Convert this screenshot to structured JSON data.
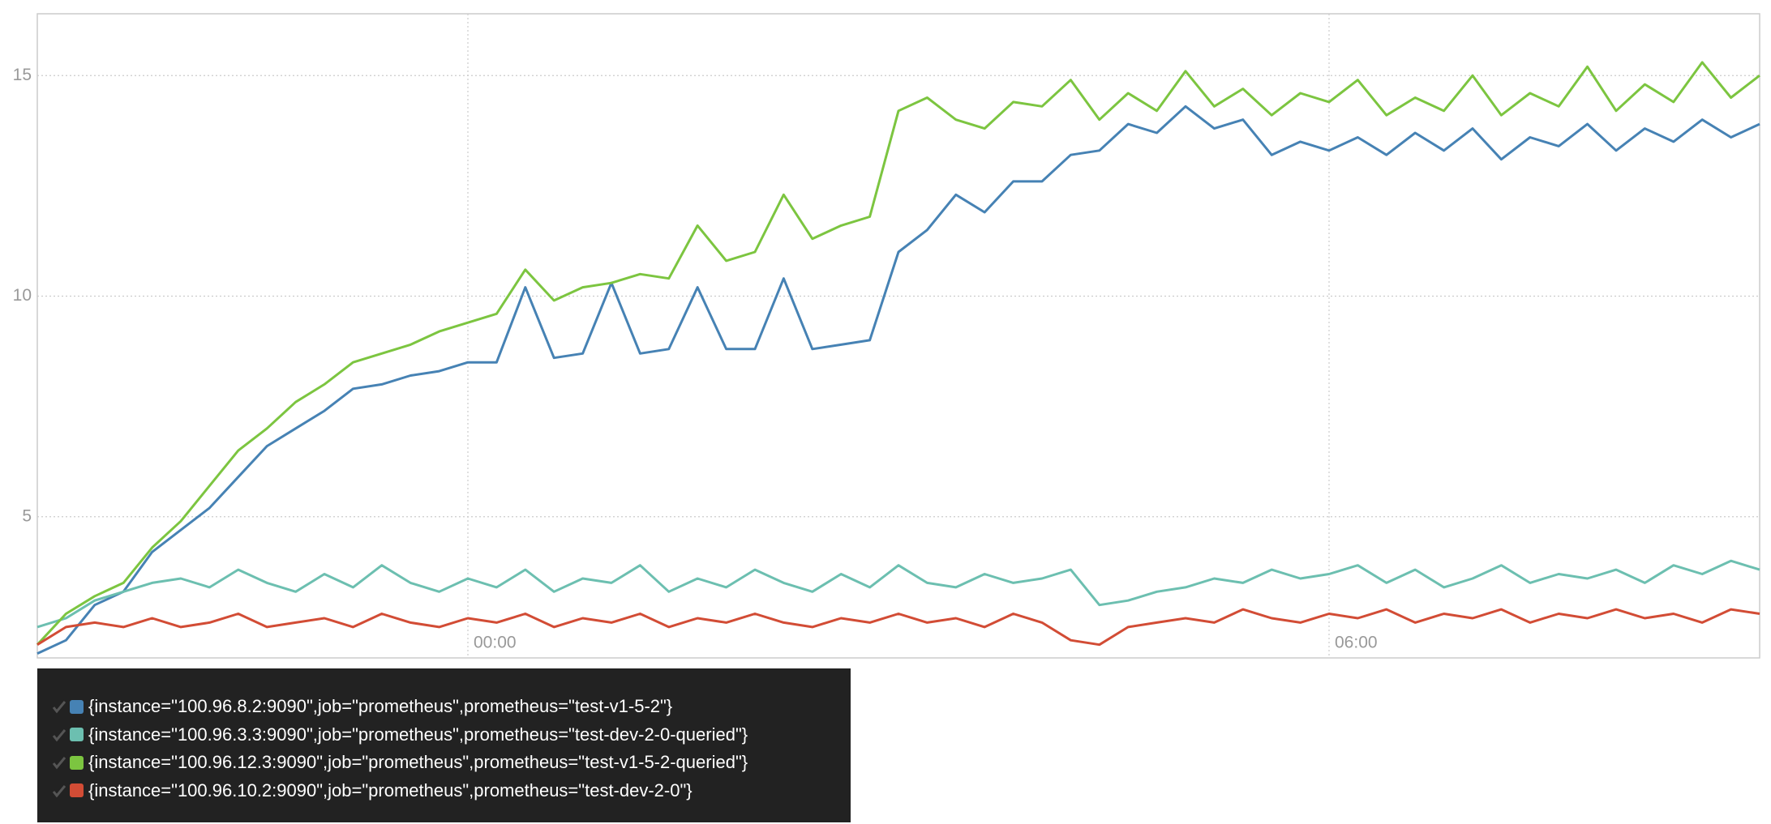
{
  "chart_data": {
    "type": "line",
    "xlim": [
      -3,
      9
    ],
    "ylim": [
      1.8,
      16.4
    ],
    "xticks": [
      {
        "value": 0,
        "label": "00:00"
      },
      {
        "value": 6,
        "label": "06:00"
      }
    ],
    "yticks": [
      5,
      10,
      15
    ],
    "grid": true,
    "legend": "bottom",
    "x": [
      -3,
      -2.8,
      -2.6,
      -2.4,
      -2.2,
      -2,
      -1.8,
      -1.6,
      -1.4,
      -1.2,
      -1,
      -0.8,
      -0.6,
      -0.4,
      -0.2,
      0,
      0.2,
      0.4,
      0.6,
      0.8,
      1,
      1.2,
      1.4,
      1.6,
      1.8,
      2,
      2.2,
      2.4,
      2.6,
      2.8,
      3,
      3.2,
      3.4,
      3.6,
      3.8,
      4,
      4.2,
      4.4,
      4.6,
      4.8,
      5,
      5.2,
      5.4,
      5.6,
      5.8,
      6,
      6.2,
      6.4,
      6.6,
      6.8,
      7,
      7.2,
      7.4,
      7.6,
      7.8,
      8,
      8.2,
      8.4,
      8.6,
      8.8,
      9
    ],
    "series": [
      {
        "name": "{instance=\"100.96.8.2:9090\",job=\"prometheus\",prometheus=\"test-v1-5-2\"}",
        "color": "#4682b4",
        "values": [
          1.9,
          2.2,
          3.0,
          3.3,
          4.2,
          4.7,
          5.2,
          5.9,
          6.6,
          7.0,
          7.4,
          7.9,
          8.0,
          8.2,
          8.3,
          8.5,
          8.5,
          10.2,
          8.6,
          8.7,
          10.3,
          8.7,
          8.8,
          10.2,
          8.8,
          8.8,
          10.4,
          8.8,
          8.9,
          9.0,
          11.0,
          11.5,
          12.3,
          11.9,
          12.6,
          12.6,
          13.2,
          13.3,
          13.9,
          13.7,
          14.3,
          13.8,
          14.0,
          13.2,
          13.5,
          13.3,
          13.6,
          13.2,
          13.7,
          13.3,
          13.8,
          13.1,
          13.6,
          13.4,
          13.9,
          13.3,
          13.8,
          13.5,
          14.0,
          13.6,
          13.9
        ]
      },
      {
        "name": "{instance=\"100.96.3.3:9090\",job=\"prometheus\",prometheus=\"test-dev-2-0-queried\"}",
        "color": "#6cbfb0",
        "values": [
          2.5,
          2.7,
          3.1,
          3.3,
          3.5,
          3.6,
          3.4,
          3.8,
          3.5,
          3.3,
          3.7,
          3.4,
          3.9,
          3.5,
          3.3,
          3.6,
          3.4,
          3.8,
          3.3,
          3.6,
          3.5,
          3.9,
          3.3,
          3.6,
          3.4,
          3.8,
          3.5,
          3.3,
          3.7,
          3.4,
          3.9,
          3.5,
          3.4,
          3.7,
          3.5,
          3.6,
          3.8,
          3.0,
          3.1,
          3.3,
          3.4,
          3.6,
          3.5,
          3.8,
          3.6,
          3.7,
          3.9,
          3.5,
          3.8,
          3.4,
          3.6,
          3.9,
          3.5,
          3.7,
          3.6,
          3.8,
          3.5,
          3.9,
          3.7,
          4.0,
          3.8
        ]
      },
      {
        "name": "{instance=\"100.96.12.3:9090\",job=\"prometheus\",prometheus=\"test-v1-5-2-queried\"}",
        "color": "#7cc540",
        "values": [
          2.1,
          2.8,
          3.2,
          3.5,
          4.3,
          4.9,
          5.7,
          6.5,
          7.0,
          7.6,
          8.0,
          8.5,
          8.7,
          8.9,
          9.2,
          9.4,
          9.6,
          10.6,
          9.9,
          10.2,
          10.3,
          10.5,
          10.4,
          11.6,
          10.8,
          11.0,
          12.3,
          11.3,
          11.6,
          11.8,
          14.2,
          14.5,
          14.0,
          13.8,
          14.4,
          14.3,
          14.9,
          14.0,
          14.6,
          14.2,
          15.1,
          14.3,
          14.7,
          14.1,
          14.6,
          14.4,
          14.9,
          14.1,
          14.5,
          14.2,
          15.0,
          14.1,
          14.6,
          14.3,
          15.2,
          14.2,
          14.8,
          14.4,
          15.3,
          14.5,
          15.0
        ]
      },
      {
        "name": "{instance=\"100.96.10.2:9090\",job=\"prometheus\",prometheus=\"test-dev-2-0\"}",
        "color": "#d24c35",
        "values": [
          2.1,
          2.5,
          2.6,
          2.5,
          2.7,
          2.5,
          2.6,
          2.8,
          2.5,
          2.6,
          2.7,
          2.5,
          2.8,
          2.6,
          2.5,
          2.7,
          2.6,
          2.8,
          2.5,
          2.7,
          2.6,
          2.8,
          2.5,
          2.7,
          2.6,
          2.8,
          2.6,
          2.5,
          2.7,
          2.6,
          2.8,
          2.6,
          2.7,
          2.5,
          2.8,
          2.6,
          2.2,
          2.1,
          2.5,
          2.6,
          2.7,
          2.6,
          2.9,
          2.7,
          2.6,
          2.8,
          2.7,
          2.9,
          2.6,
          2.8,
          2.7,
          2.9,
          2.6,
          2.8,
          2.7,
          2.9,
          2.7,
          2.8,
          2.6,
          2.9,
          2.8
        ]
      }
    ]
  }
}
